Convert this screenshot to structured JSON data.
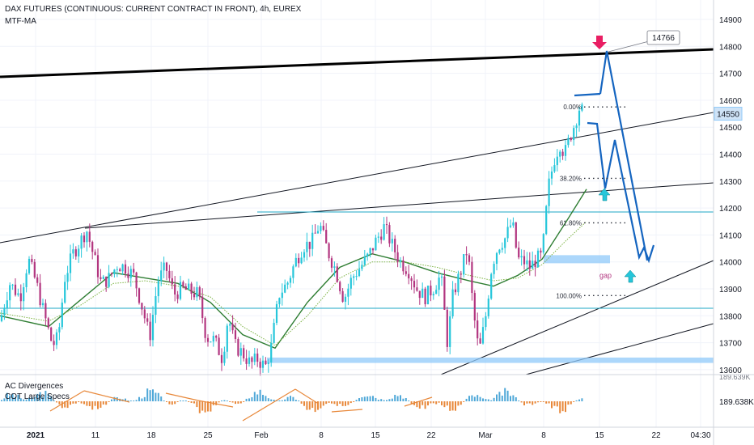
{
  "header": {
    "title": "DAX FUTURES (CONTINUOUS: CURRENT CONTRACT IN FRONT), 4h, EUREX",
    "study": "MTF-MA"
  },
  "lower_pane": {
    "label1": "AC Divergences",
    "label2": "COT Large Specs",
    "scale_top": "189.639K",
    "scale_mid": "189.638K"
  },
  "price_tag": "14550",
  "callout": "14766",
  "fib": {
    "f0": "0.00%",
    "f38": "38.20%",
    "f61": "61.80%",
    "f100": "100.00%"
  },
  "gap_label": "gap",
  "colors": {
    "up": "#26c6da",
    "down": "#b2357f",
    "trendline": "#131722",
    "cyan_line": "#1ea7c5",
    "projection": "#1565c0",
    "ma": "#2e7d32",
    "highlight": "#90caf9",
    "marker_red": "#e91e63",
    "marker_cyan": "#26c6da",
    "histo_up": "#4fa8d8",
    "histo_down": "#e8883a"
  },
  "chart_data": {
    "type": "candlestick",
    "title": "DAX FUTURES (CONTINUOUS: CURRENT CONTRACT IN FRONT), 4h, EUREX",
    "ylim": [
      13580,
      14960
    ],
    "y_ticks": [
      13600,
      13700,
      13800,
      13900,
      14000,
      14100,
      14200,
      14300,
      14400,
      14500,
      14600,
      14700,
      14800,
      14900
    ],
    "x_ticks": [
      "2021",
      "11",
      "18",
      "25",
      "Feb",
      "8",
      "15",
      "22",
      "Mar",
      "8",
      "15",
      "22",
      "04:30"
    ],
    "last_price": 14550,
    "close_path": [
      [
        0,
        13780
      ],
      [
        12,
        13920
      ],
      [
        25,
        13870
      ],
      [
        35,
        14010
      ],
      [
        45,
        13920
      ],
      [
        55,
        13800
      ],
      [
        65,
        13690
      ],
      [
        72,
        13720
      ],
      [
        80,
        13940
      ],
      [
        90,
        14030
      ],
      [
        100,
        14080
      ],
      [
        107,
        14120
      ],
      [
        115,
        14030
      ],
      [
        125,
        13920
      ],
      [
        135,
        13940
      ],
      [
        145,
        13990
      ],
      [
        155,
        13980
      ],
      [
        165,
        13950
      ],
      [
        175,
        13840
      ],
      [
        185,
        13720
      ],
      [
        195,
        13930
      ],
      [
        205,
        13980
      ],
      [
        215,
        13880
      ],
      [
        225,
        13900
      ],
      [
        235,
        13890
      ],
      [
        245,
        13880
      ],
      [
        255,
        13720
      ],
      [
        265,
        13710
      ],
      [
        275,
        13640
      ],
      [
        282,
        13800
      ],
      [
        290,
        13690
      ],
      [
        300,
        13660
      ],
      [
        310,
        13620
      ],
      [
        318,
        13640
      ],
      [
        328,
        13610
      ],
      [
        335,
        13680
      ],
      [
        345,
        13880
      ],
      [
        355,
        13920
      ],
      [
        365,
        14000
      ],
      [
        375,
        14060
      ],
      [
        385,
        14070
      ],
      [
        395,
        14140
      ],
      [
        405,
        14040
      ],
      [
        415,
        13970
      ],
      [
        425,
        13860
      ],
      [
        435,
        13940
      ],
      [
        445,
        13980
      ],
      [
        455,
        14020
      ],
      [
        465,
        14080
      ],
      [
        475,
        14130
      ],
      [
        485,
        14060
      ],
      [
        495,
        14000
      ],
      [
        505,
        13970
      ],
      [
        515,
        13900
      ],
      [
        525,
        13870
      ],
      [
        535,
        13900
      ],
      [
        545,
        13950
      ],
      [
        553,
        13700
      ],
      [
        560,
        13880
      ],
      [
        570,
        13970
      ],
      [
        578,
        14050
      ],
      [
        585,
        13820
      ],
      [
        592,
        13660
      ],
      [
        600,
        13790
      ],
      [
        608,
        13990
      ],
      [
        616,
        14060
      ],
      [
        625,
        14090
      ],
      [
        633,
        14150
      ],
      [
        640,
        14010
      ],
      [
        648,
        14000
      ],
      [
        655,
        13980
      ],
      [
        663,
        14010
      ],
      [
        670,
        14020
      ],
      [
        678,
        14280
      ],
      [
        685,
        14380
      ],
      [
        692,
        14440
      ],
      [
        698,
        14400
      ],
      [
        704,
        14460
      ],
      [
        710,
        14510
      ],
      [
        716,
        14570
      ],
      [
        720,
        14560
      ]
    ],
    "ma_fast": [
      [
        0,
        13800
      ],
      [
        60,
        13760
      ],
      [
        100,
        13860
      ],
      [
        140,
        13960
      ],
      [
        180,
        13940
      ],
      [
        220,
        13920
      ],
      [
        260,
        13850
      ],
      [
        300,
        13730
      ],
      [
        340,
        13680
      ],
      [
        380,
        13850
      ],
      [
        420,
        13980
      ],
      [
        460,
        14030
      ],
      [
        500,
        14000
      ],
      [
        540,
        13960
      ],
      [
        580,
        13930
      ],
      [
        610,
        13910
      ],
      [
        640,
        13950
      ],
      [
        670,
        14010
      ],
      [
        700,
        14150
      ],
      [
        725,
        14270
      ]
    ],
    "ma_slow": [
      [
        0,
        13810
      ],
      [
        60,
        13780
      ],
      [
        100,
        13840
      ],
      [
        140,
        13920
      ],
      [
        180,
        13930
      ],
      [
        220,
        13910
      ],
      [
        260,
        13870
      ],
      [
        300,
        13760
      ],
      [
        340,
        13690
      ],
      [
        380,
        13800
      ],
      [
        420,
        13940
      ],
      [
        460,
        14000
      ],
      [
        500,
        14000
      ],
      [
        540,
        13980
      ],
      [
        580,
        13950
      ],
      [
        610,
        13930
      ],
      [
        640,
        13940
      ],
      [
        670,
        13990
      ],
      [
        700,
        14080
      ],
      [
        725,
        14150
      ]
    ],
    "horizontal_levels": [
      14180,
      13825
    ],
    "fib_levels": [
      {
        "label": "0.00%",
        "value": 14575
      },
      {
        "label": "38.20%",
        "value": 14310
      },
      {
        "label": "61.80%",
        "value": 14145
      },
      {
        "label": "100.00%",
        "value": 13875
      }
    ],
    "gap_zone": [
      13995,
      14025
    ],
    "support_zone": [
      13625,
      13645
    ],
    "callout_value": 14766
  }
}
